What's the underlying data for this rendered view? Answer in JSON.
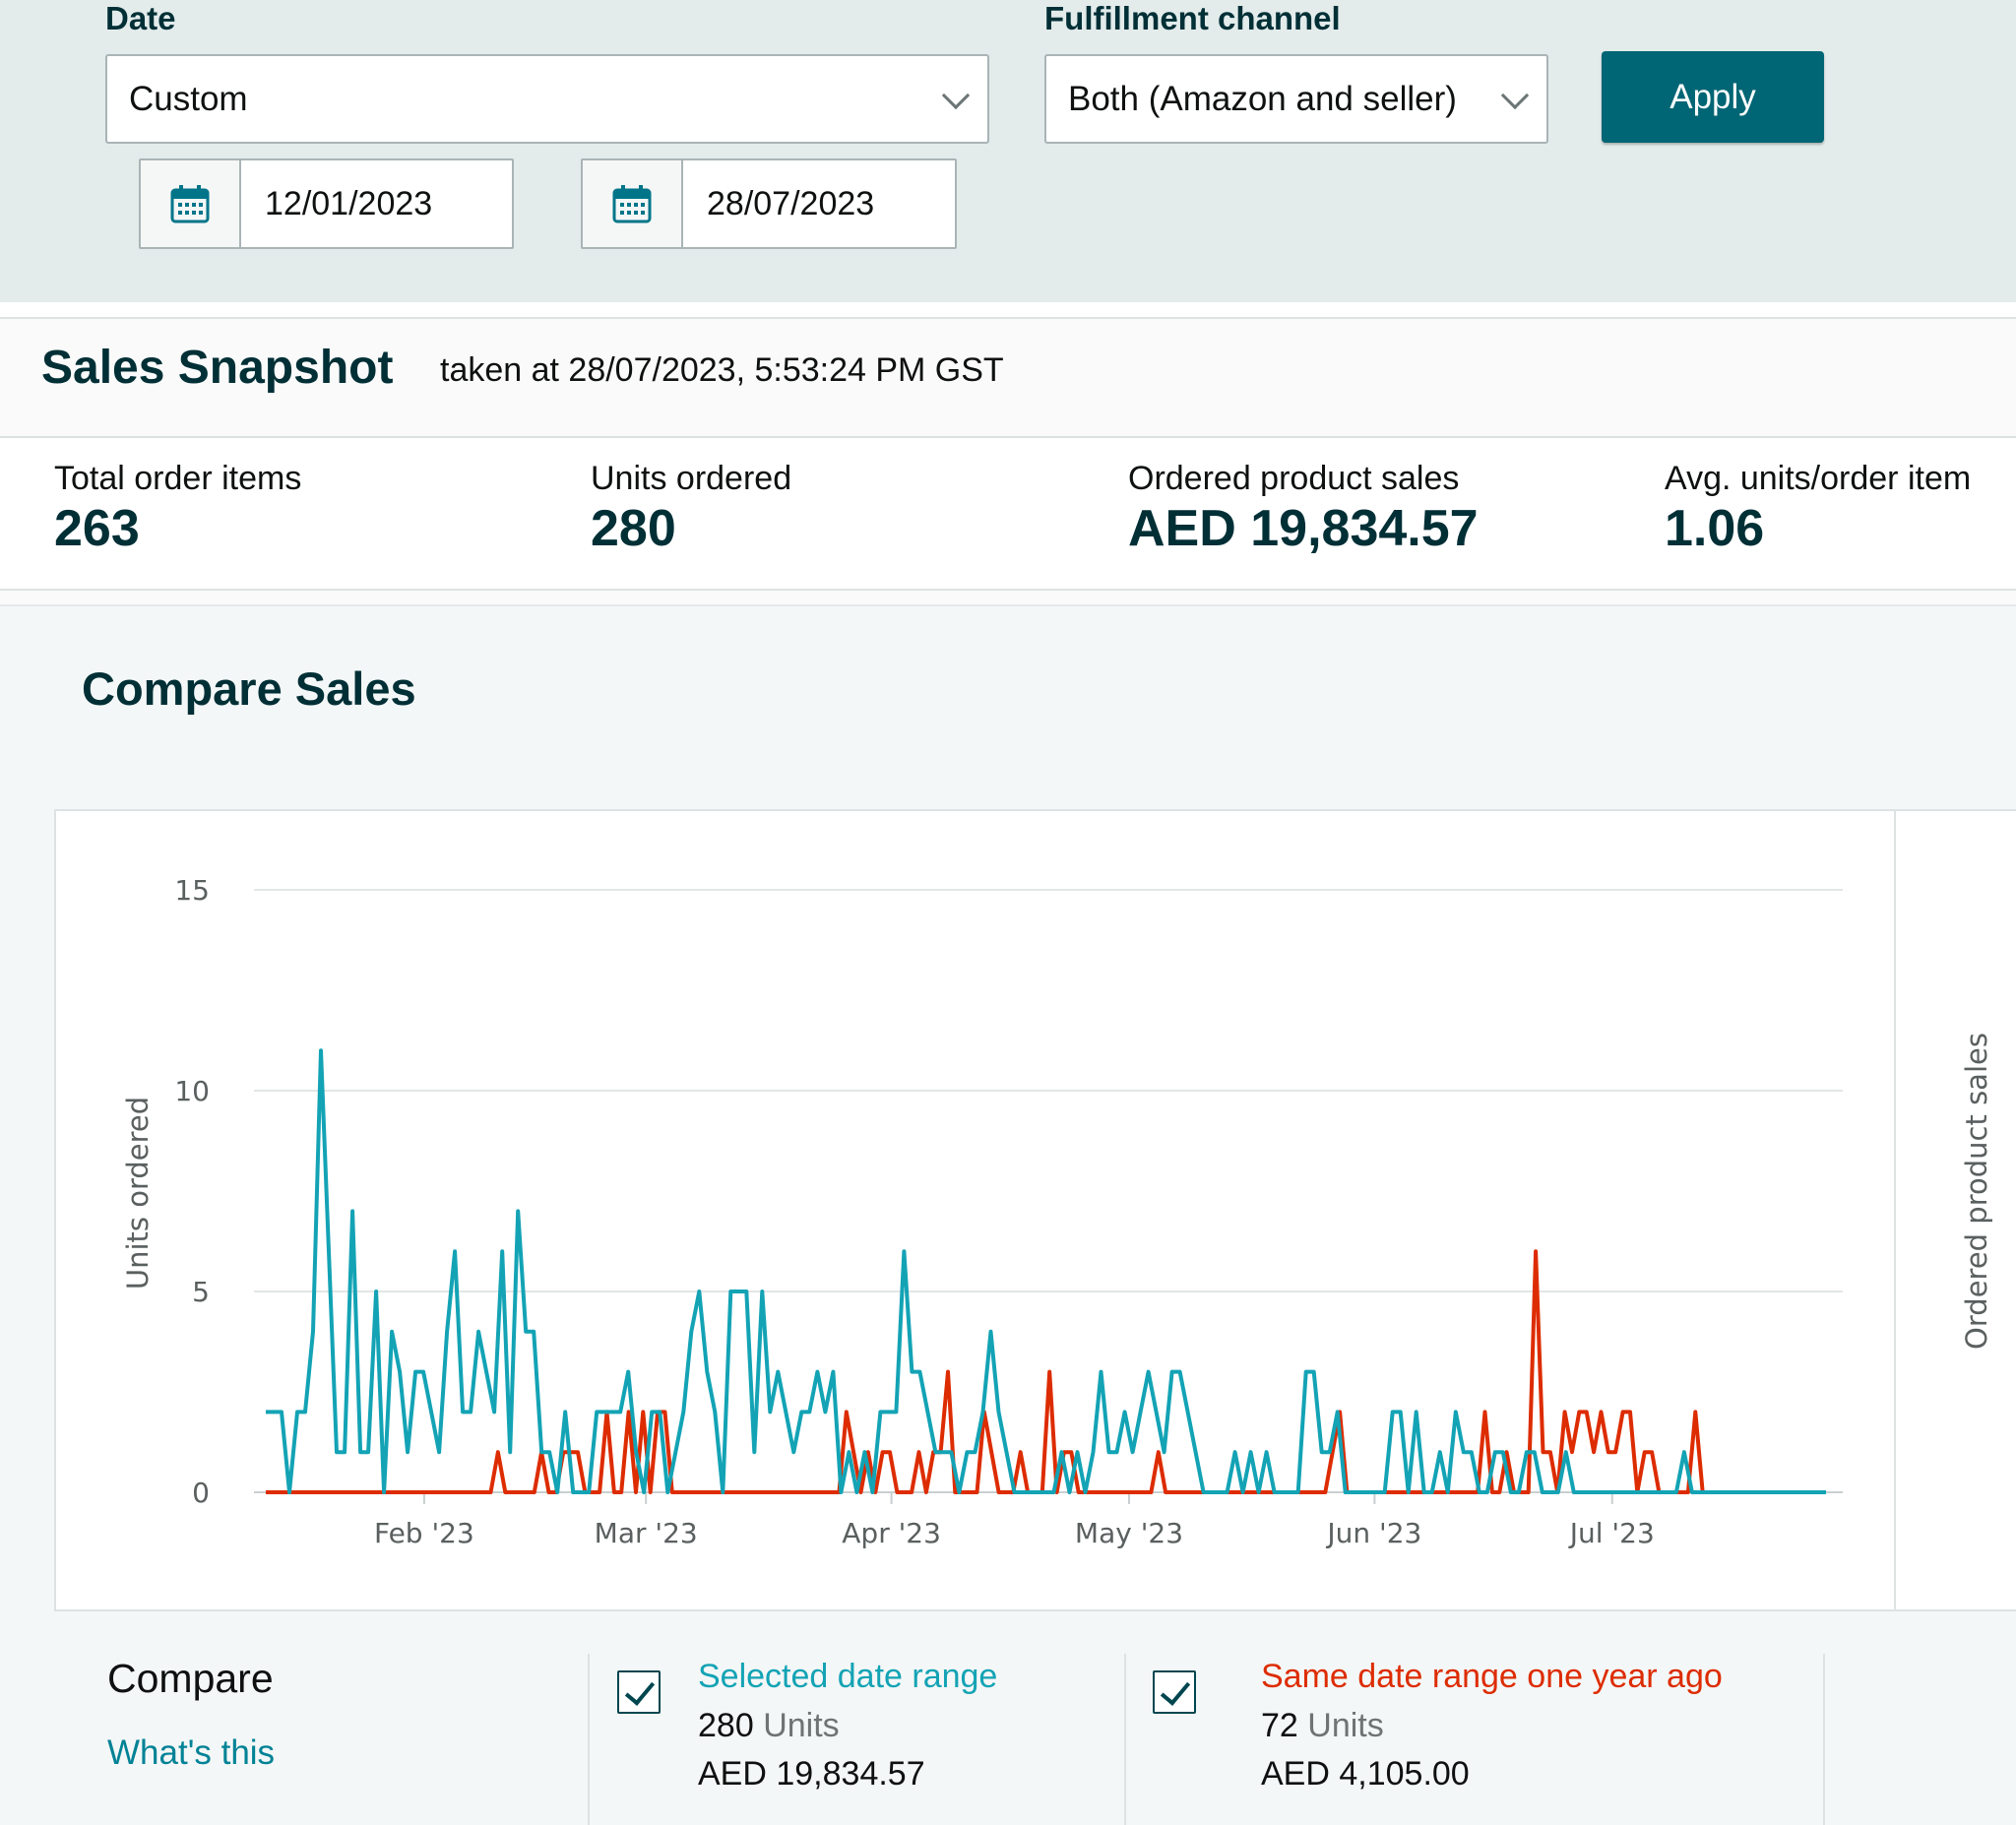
{
  "filters": {
    "date_label": "Date",
    "date_range_value": "Custom",
    "start_date": "12/01/2023",
    "end_date": "28/07/2023",
    "channel_label": "Fulfillment channel",
    "channel_value": "Both (Amazon and seller)",
    "apply_label": "Apply"
  },
  "snapshot": {
    "title": "Sales Snapshot",
    "taken_at": "taken at 28/07/2023, 5:53:24 PM GST",
    "metrics": [
      {
        "label": "Total order items",
        "value": "263"
      },
      {
        "label": "Units ordered",
        "value": "280"
      },
      {
        "label": "Ordered product sales",
        "value": "AED 19,834.57"
      },
      {
        "label": "Avg. units/order item",
        "value": "1.06"
      }
    ]
  },
  "compare": {
    "title": "Compare Sales",
    "legend_title": "Compare",
    "whats_this": "What's this",
    "selected": {
      "name": "Selected date range",
      "units": "280",
      "units_suffix": "Units",
      "sales": "AED 19,834.57"
    },
    "last_year": {
      "name": "Same date range one year ago",
      "units": "72",
      "units_suffix": "Units",
      "sales": "AED 4,105.00"
    }
  },
  "colors": {
    "selected": "#13a3b5",
    "last_year": "#dd2c00",
    "accent": "#006574"
  },
  "chart_data": {
    "type": "line",
    "ylabel": "Units ordered",
    "y2label": "Ordered product sales",
    "ylim": [
      0,
      15
    ],
    "yticks": [
      0,
      5,
      10,
      15
    ],
    "x_start": "2023-01-12",
    "x_end": "2023-07-28",
    "xticks": [
      {
        "label": "Feb '23",
        "date": "2023-02-01"
      },
      {
        "label": "Mar '23",
        "date": "2023-03-01"
      },
      {
        "label": "Apr '23",
        "date": "2023-04-01"
      },
      {
        "label": "May '23",
        "date": "2023-05-01"
      },
      {
        "label": "Jun '23",
        "date": "2023-06-01"
      },
      {
        "label": "Jul '23",
        "date": "2023-07-01"
      }
    ],
    "grid": true,
    "series": [
      {
        "name": "Selected date range",
        "color": "#13a3b5",
        "values": [
          2,
          2,
          2,
          0,
          2,
          2,
          4,
          11,
          6,
          1,
          1,
          7,
          1,
          1,
          5,
          0,
          4,
          3,
          1,
          3,
          3,
          2,
          1,
          4,
          6,
          2,
          2,
          4,
          3,
          2,
          6,
          1,
          7,
          4,
          4,
          1,
          1,
          0,
          2,
          0,
          0,
          0,
          2,
          2,
          2,
          2,
          3,
          1,
          0,
          2,
          2,
          0,
          1,
          2,
          4,
          5,
          3,
          2,
          0,
          5,
          5,
          5,
          1,
          5,
          2,
          3,
          2,
          1,
          2,
          2,
          3,
          2,
          3,
          0,
          1,
          0,
          1,
          0,
          2,
          2,
          2,
          6,
          3,
          3,
          2,
          1,
          1,
          1,
          0,
          1,
          1,
          2,
          4,
          2,
          1,
          0,
          0,
          0,
          0,
          0,
          0,
          1,
          0,
          1,
          0,
          1,
          3,
          1,
          1,
          2,
          1,
          2,
          3,
          2,
          1,
          3,
          3,
          2,
          1,
          0,
          0,
          0,
          0,
          1,
          0,
          1,
          0,
          1,
          0,
          0,
          0,
          0,
          3,
          3,
          1,
          1,
          2,
          0,
          0,
          0,
          0,
          0,
          0,
          2,
          2,
          0,
          2,
          0,
          0,
          1,
          0,
          2,
          1,
          1,
          0,
          0,
          1,
          1,
          0,
          0,
          1,
          1,
          0,
          0,
          0,
          1,
          0,
          0,
          0,
          0,
          0,
          0,
          0,
          0,
          0,
          0,
          0,
          0,
          0,
          0,
          1,
          0,
          0,
          0,
          0,
          0,
          0,
          0,
          0,
          0,
          0,
          0,
          0,
          0,
          0,
          0,
          0,
          0,
          0
        ]
      },
      {
        "name": "Same date range one year ago",
        "color": "#dd2c00",
        "values": [
          0,
          0,
          0,
          0,
          0,
          0,
          0,
          0,
          0,
          0,
          0,
          0,
          0,
          0,
          0,
          0,
          0,
          0,
          0,
          0,
          0,
          0,
          0,
          0,
          0,
          0,
          0,
          0,
          0,
          0,
          0,
          0,
          1,
          0,
          0,
          0,
          0,
          0,
          1,
          0,
          0,
          1,
          1,
          1,
          0,
          0,
          0,
          2,
          0,
          0,
          2,
          0,
          2,
          0,
          2,
          2,
          0,
          0,
          0,
          0,
          0,
          0,
          0,
          0,
          0,
          0,
          0,
          0,
          0,
          0,
          0,
          0,
          0,
          0,
          0,
          0,
          0,
          0,
          0,
          0,
          2,
          1,
          0,
          1,
          0,
          1,
          1,
          0,
          0,
          0,
          1,
          0,
          1,
          1,
          3,
          0,
          0,
          0,
          0,
          2,
          1,
          0,
          0,
          0,
          1,
          0,
          0,
          0,
          3,
          0,
          1,
          1,
          0,
          0,
          0,
          0,
          0,
          0,
          0,
          0,
          0,
          0,
          0,
          1,
          0,
          0,
          0,
          0,
          0,
          0,
          0,
          0,
          0,
          0,
          0,
          0,
          0,
          0,
          0,
          0,
          0,
          0,
          0,
          0,
          0,
          0,
          0,
          1,
          2,
          0,
          0,
          0,
          0,
          0,
          0,
          0,
          0,
          0,
          0,
          0,
          0,
          0,
          0,
          0,
          0,
          0,
          0,
          0,
          2,
          0,
          0,
          1,
          0,
          0,
          0,
          6,
          1,
          1,
          0,
          2,
          1,
          2,
          2,
          1,
          2,
          1,
          1,
          2,
          2,
          0,
          1,
          1,
          0,
          0,
          0,
          0,
          0,
          2,
          0,
          0,
          0,
          0,
          0,
          0,
          0,
          0,
          0,
          0,
          0,
          0,
          0,
          0,
          0,
          0,
          0,
          0
        ]
      }
    ]
  }
}
